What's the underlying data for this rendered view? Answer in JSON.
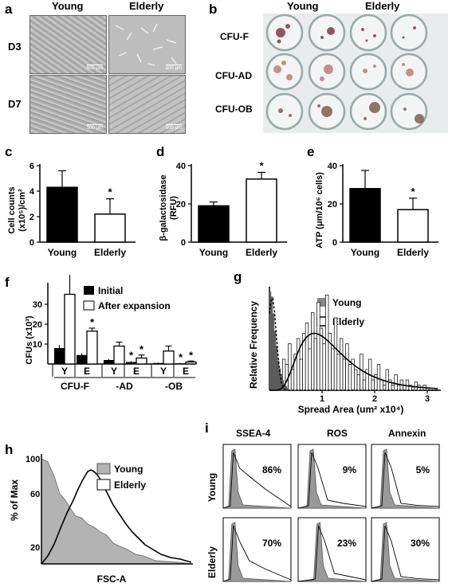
{
  "panel_a": {
    "letter": "a",
    "col_young": "Young",
    "col_elderly": "Elderly",
    "row_d3": "D3",
    "row_d7": "D7",
    "scale_bar": "500 μm"
  },
  "panel_b": {
    "letter": "b",
    "col_young": "Young",
    "col_elderly": "Elderly",
    "rows": [
      "CFU-F",
      "CFU-AD",
      "CFU-OB"
    ]
  },
  "panel_c": {
    "letter": "c",
    "star": "*",
    "chart_data": {
      "type": "bar",
      "categories": [
        "Young",
        "Elderly"
      ],
      "values": [
        4.3,
        2.2
      ],
      "errors": [
        1.3,
        1.2
      ],
      "ylabel_line1": "Cell counts",
      "ylabel_line2": "(x10⁵)/cm²",
      "yticks": [
        "0",
        "2",
        "4",
        "6"
      ],
      "ylim": [
        0,
        6
      ],
      "fills": [
        "#000000",
        "#ffffff"
      ]
    }
  },
  "panel_d": {
    "letter": "d",
    "star": "*",
    "chart_data": {
      "type": "bar",
      "categories": [
        "Young",
        "Elderly"
      ],
      "values": [
        19,
        33
      ],
      "errors": [
        2,
        3.5
      ],
      "ylabel_line1": "β-galactosidase",
      "ylabel_line2": "(RFU)",
      "yticks": [
        "0",
        "20",
        "40"
      ],
      "ylim": [
        0,
        40
      ],
      "fills": [
        "#000000",
        "#ffffff"
      ]
    }
  },
  "panel_e": {
    "letter": "e",
    "star": "*",
    "chart_data": {
      "type": "bar",
      "categories": [
        "Young",
        "Elderly"
      ],
      "values": [
        28,
        17
      ],
      "errors": [
        9.5,
        6
      ],
      "ylabel": "ATP (μm/10⁶ cells)",
      "yticks": [
        "0",
        "20",
        "40"
      ],
      "ylim": [
        0,
        40
      ],
      "fills": [
        "#000000",
        "#ffffff"
      ]
    }
  },
  "panel_f": {
    "letter": "f",
    "chart_data": {
      "type": "bar",
      "ylabel": "CFUs (x10³)",
      "yticks": [
        "10",
        "20",
        "30"
      ],
      "ylim": [
        0,
        40
      ],
      "legend": [
        "Initial",
        "After expansion"
      ],
      "groups": [
        "CFU-F",
        "-AD",
        "-OB"
      ],
      "subgroups": [
        "Y",
        "E"
      ],
      "initial": [
        8,
        4.5,
        2,
        1,
        0.5,
        0.3
      ],
      "initial_err": [
        1.5,
        0.8,
        0.5,
        0.4,
        0.2,
        0.2
      ],
      "expansion": [
        35,
        16.5,
        9,
        3,
        6.5,
        1
      ],
      "expansion_err": [
        13,
        1.5,
        2,
        1.5,
        2.5,
        0.5
      ],
      "stars": [
        "",
        "*",
        "",
        "*",
        "",
        "*"
      ],
      "initial_stars": [
        "",
        "",
        "",
        "*",
        "",
        "*"
      ]
    }
  },
  "panel_g": {
    "letter": "g",
    "chart_data": {
      "type": "histogram",
      "ylabel": "Relative Frequency",
      "xlabel": "Spread Area (um² x10⁴)",
      "xticks": [
        "1",
        "2",
        "3"
      ],
      "legend": [
        "Young",
        "Elderly"
      ],
      "young_bins": [
        1.0,
        0.95,
        0.78,
        0.6,
        0.45,
        0.3,
        0.22,
        0.15,
        0.1,
        0.06,
        0.04,
        0.02
      ],
      "elderly_bins": [
        0.05,
        0.1,
        0.2,
        0.15,
        0.3,
        0.25,
        0.45,
        0.2,
        0.35,
        0.5,
        0.3,
        0.55,
        0.65,
        0.4,
        0.75,
        0.5,
        0.85,
        0.6,
        0.45,
        0.92,
        0.55,
        0.4,
        0.7,
        0.35,
        0.5,
        0.3,
        0.45,
        0.25,
        0.3,
        0.2,
        0.15,
        0.35,
        0.1,
        0.2,
        0.3,
        0.1,
        0.15,
        0.25,
        0.1,
        0.05,
        0.2,
        0.1,
        0.05,
        0.15,
        0.05,
        0.1,
        0.05,
        0.1,
        0.05,
        0.03,
        0.08,
        0.05,
        0.03,
        0.05,
        0.02
      ]
    }
  },
  "panel_h": {
    "letter": "h",
    "chart_data": {
      "type": "area",
      "ylabel": "% of Max",
      "xlabel": "FSC-A",
      "yticks": [
        "100",
        "60",
        "20"
      ],
      "legend": [
        "Young",
        "Elderly"
      ]
    }
  },
  "panel_i": {
    "letter": "i",
    "cols": [
      "SSEA-4",
      "ROS",
      "Annexin"
    ],
    "rows": [
      "Young",
      "Elderly"
    ],
    "young_pct": [
      "86%",
      "9%",
      "5%"
    ],
    "elderly_pct": [
      "70%",
      "23%",
      "30%"
    ]
  }
}
